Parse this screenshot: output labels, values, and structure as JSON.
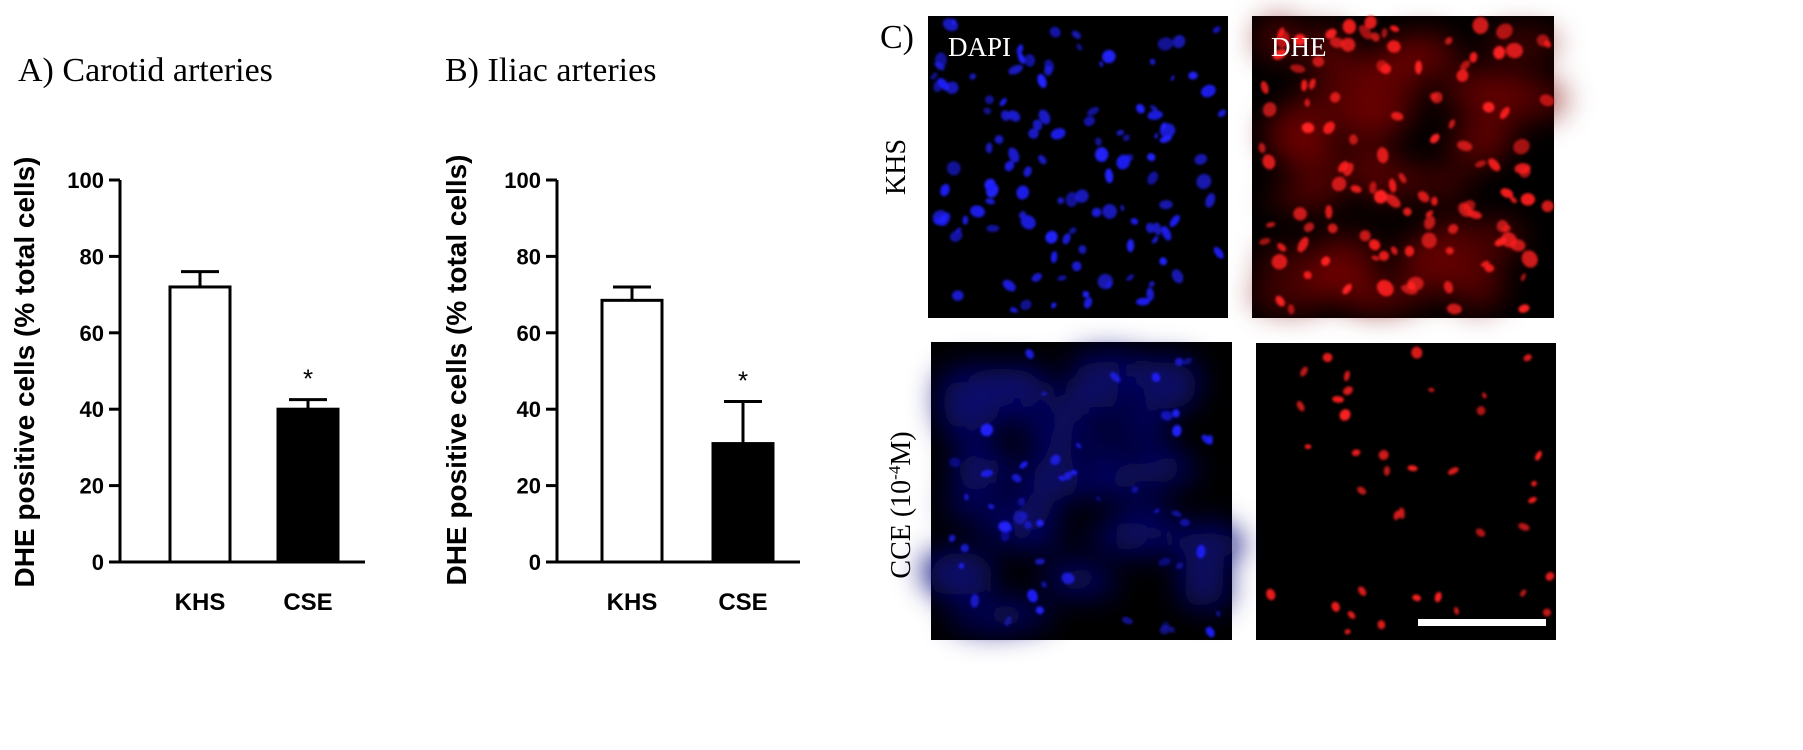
{
  "chart_data": [
    {
      "type": "bar",
      "panel": "A)",
      "title": "Carotid arteries",
      "ylabel": "DHE positive cells (% total cells)",
      "xlabel": "",
      "ylim": [
        0,
        100
      ],
      "yticks": [
        0,
        20,
        40,
        60,
        80,
        100
      ],
      "grid": false,
      "categories": [
        "KHS",
        "CSE"
      ],
      "values": [
        72,
        40
      ],
      "errors": [
        4,
        2.5
      ],
      "fill_colors": [
        "#ffffff",
        "#000000"
      ],
      "annotations": [
        "",
        "*"
      ]
    },
    {
      "type": "bar",
      "panel": "B)",
      "title": "Iliac arteries",
      "ylabel": "DHE positive cells (% total cells)",
      "xlabel": "",
      "ylim": [
        0,
        100
      ],
      "yticks": [
        0,
        20,
        40,
        60,
        80,
        100
      ],
      "grid": false,
      "categories": [
        "KHS",
        "CSE"
      ],
      "values": [
        68.5,
        31
      ],
      "errors": [
        3.5,
        11
      ],
      "fill_colors": [
        "#ffffff",
        "#000000"
      ],
      "annotations": [
        "",
        "*"
      ]
    }
  ],
  "micrographs": {
    "panel": "C)",
    "columns": [
      "DAPI",
      "DHE"
    ],
    "rows": [
      "KHS",
      "CCE (10",
      "-4",
      "M)"
    ],
    "colors": {
      "DAPI": "#2020ff",
      "DHE": "#ff2020",
      "background": "#000000"
    }
  }
}
